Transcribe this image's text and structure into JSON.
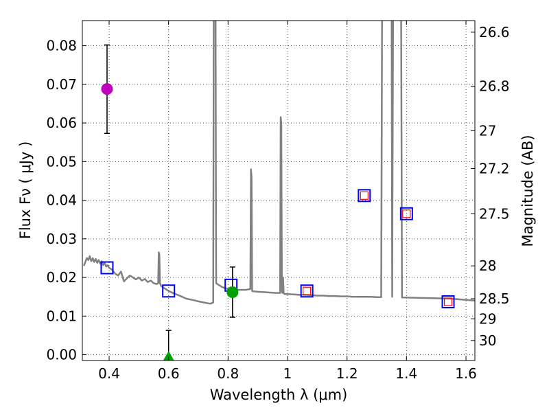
{
  "chart_data": {
    "type": "scatter",
    "xlabel": "Wavelength  λ (μm)",
    "ylabel": "Flux  Fν  ( μJy )",
    "y2label": "Magnitude (AB)",
    "xlim": [
      0.31,
      1.63
    ],
    "ylim": [
      -0.0015,
      0.0865
    ],
    "grid": true,
    "x_ticks": [
      0.4,
      0.6,
      0.8,
      1.0,
      1.2,
      1.4,
      1.6
    ],
    "x_tick_labels": [
      "0.4",
      "0.6",
      "0.8",
      "1",
      "1.2",
      "1.4",
      "1.6"
    ],
    "y_ticks": [
      0.0,
      0.01,
      0.02,
      0.03,
      0.04,
      0.05,
      0.06,
      0.07,
      0.08
    ],
    "y_tick_labels": [
      "0.00",
      "0.01",
      "0.02",
      "0.03",
      "0.04",
      "0.05",
      "0.06",
      "0.07",
      "0.08"
    ],
    "mag_ticks": [
      {
        "label": "26.6",
        "flux": 0.0835
      },
      {
        "label": "26.8",
        "flux": 0.0695
      },
      {
        "label": "27",
        "flux": 0.058
      },
      {
        "label": "27.2",
        "flux": 0.0482
      },
      {
        "label": "27.5",
        "flux": 0.0365
      },
      {
        "label": "28",
        "flux": 0.023
      },
      {
        "label": "28.5",
        "flux": 0.0145
      },
      {
        "label": "29",
        "flux": 0.0093
      },
      {
        "label": "30",
        "flux": 0.0037
      }
    ],
    "series": [
      {
        "name": "template SED",
        "style": "line",
        "color": "#808080",
        "x": [
          0.315,
          0.32,
          0.325,
          0.33,
          0.335,
          0.34,
          0.345,
          0.35,
          0.355,
          0.36,
          0.365,
          0.37,
          0.375,
          0.38,
          0.385,
          0.39,
          0.395,
          0.4,
          0.41,
          0.42,
          0.43,
          0.44,
          0.45,
          0.46,
          0.47,
          0.48,
          0.49,
          0.5,
          0.51,
          0.52,
          0.53,
          0.54,
          0.55,
          0.56,
          0.565,
          0.567,
          0.569,
          0.571,
          0.575,
          0.58,
          0.6,
          0.62,
          0.64,
          0.66,
          0.68,
          0.7,
          0.72,
          0.74,
          0.75,
          0.752,
          0.754,
          0.756,
          0.758,
          0.76,
          0.78,
          0.8,
          0.82,
          0.84,
          0.86,
          0.875,
          0.877,
          0.879,
          0.881,
          0.885,
          0.9,
          0.92,
          0.94,
          0.96,
          0.975,
          0.977,
          0.979,
          0.981,
          0.983,
          0.985,
          0.987,
          0.99,
          1.0,
          1.02,
          1.04,
          1.06,
          1.08,
          1.1,
          1.12,
          1.14,
          1.16,
          1.18,
          1.2,
          1.22,
          1.24,
          1.26,
          1.28,
          1.3,
          1.315,
          1.318,
          1.32,
          1.325,
          1.33,
          1.335,
          1.34,
          1.345,
          1.348,
          1.35,
          1.352,
          1.355,
          1.36,
          1.365,
          1.37,
          1.375,
          1.38,
          1.382,
          1.385,
          1.4,
          1.45,
          1.5,
          1.55,
          1.6,
          1.63
        ],
        "y": [
          0.023,
          0.024,
          0.025,
          0.0245,
          0.0255,
          0.0242,
          0.025,
          0.024,
          0.0248,
          0.0238,
          0.0245,
          0.0236,
          0.0242,
          0.0232,
          0.0238,
          0.0228,
          0.0232,
          0.0225,
          0.022,
          0.021,
          0.0205,
          0.0215,
          0.019,
          0.0198,
          0.0205,
          0.02,
          0.0195,
          0.02,
          0.0192,
          0.0196,
          0.0188,
          0.0192,
          0.0185,
          0.0183,
          0.0185,
          0.0265,
          0.026,
          0.0185,
          0.0178,
          0.0175,
          0.0165,
          0.0158,
          0.0152,
          0.0145,
          0.0142,
          0.0138,
          0.0135,
          0.0132,
          0.0135,
          0.09,
          0.09,
          0.09,
          0.09,
          0.0185,
          0.0175,
          0.017,
          0.0168,
          0.0168,
          0.0168,
          0.017,
          0.048,
          0.046,
          0.0165,
          0.0164,
          0.0163,
          0.0162,
          0.0161,
          0.016,
          0.016,
          0.0615,
          0.06,
          0.0165,
          0.016,
          0.02,
          0.016,
          0.0157,
          0.0157,
          0.0156,
          0.0155,
          0.0155,
          0.0154,
          0.0153,
          0.0153,
          0.0152,
          0.0152,
          0.0151,
          0.0151,
          0.015,
          0.015,
          0.015,
          0.015,
          0.0149,
          0.0149,
          0.09,
          0.09,
          0.09,
          0.09,
          0.09,
          0.09,
          0.09,
          0.09,
          0.09,
          0.015,
          0.09,
          0.09,
          0.09,
          0.09,
          0.09,
          0.09,
          0.09,
          0.0148,
          0.0148,
          0.0147,
          0.0146,
          0.0145,
          0.0142,
          0.014
        ]
      },
      {
        "name": "model photometry",
        "style": "open-square",
        "color": "#0000ff",
        "x": [
          0.393,
          0.6,
          0.81,
          1.065,
          1.258,
          1.4,
          1.54
        ],
        "y": [
          0.0225,
          0.0165,
          0.018,
          0.0165,
          0.0412,
          0.0365,
          0.0137
        ]
      },
      {
        "name": "inner model squares",
        "style": "open-square-small",
        "color": "#ff0000",
        "x": [
          1.065,
          1.258,
          1.4,
          1.54
        ],
        "y": [
          0.0165,
          0.0412,
          0.0365,
          0.0137
        ]
      },
      {
        "name": "observed magenta",
        "style": "circle",
        "color": "#bf00bf",
        "x": [
          0.393
        ],
        "y": [
          0.0688
        ],
        "yerr_low": [
          0.0573
        ],
        "yerr_high": [
          0.0802
        ]
      },
      {
        "name": "observed green",
        "style": "circle",
        "color": "#00a000",
        "x": [
          0.815
        ],
        "y": [
          0.0162
        ],
        "yerr_low": [
          0.0097
        ],
        "yerr_high": [
          0.0227
        ]
      },
      {
        "name": "upper limit green",
        "style": "triangle",
        "color": "#00a000",
        "x": [
          0.6
        ],
        "y": [
          -0.0008
        ],
        "yerr_low": [
          -0.0008
        ],
        "yerr_high": [
          0.0063
        ]
      }
    ]
  }
}
